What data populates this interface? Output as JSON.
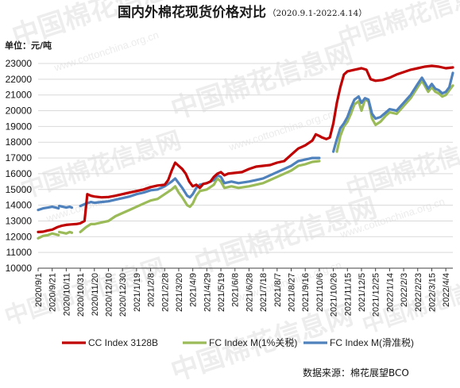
{
  "header": {
    "title": "国内外棉花现货价格对比",
    "date_range": "（2020.9.1-2022.4.14）",
    "unit": "单位：元/吨"
  },
  "footer": {
    "source": "数据来源：棉花展望BCO"
  },
  "watermark": {
    "text": "中国棉花信息网",
    "url": "www.cottonchina.org.cn"
  },
  "colors": {
    "cc_index": "#c00000",
    "fc_1pct": "#9bbb59",
    "fc_sliding": "#4f81bd",
    "grid": "#d9d9d9",
    "axis": "#404040"
  },
  "chart_data": {
    "type": "line",
    "title": "国内外棉花现货价格对比",
    "subtitle": "（2020.9.1-2022.4.14）",
    "ylabel": "单位：元/吨",
    "ylim": [
      10000,
      23000
    ],
    "yticks": [
      10000,
      11000,
      12000,
      13000,
      14000,
      15000,
      16000,
      17000,
      18000,
      19000,
      20000,
      21000,
      22000,
      23000
    ],
    "ytick_labels": [
      "10000",
      "11000",
      "12000",
      "13000",
      "14000",
      "15000",
      "16000",
      "17000",
      "18000",
      "19000",
      "20000",
      "21000",
      "22000",
      "23000"
    ],
    "x_dates": [
      "2020-09-01",
      "2022-04-14"
    ],
    "xtick_labels": [
      "2020/9/1",
      "2020/9/21",
      "2020/10/11",
      "2020/10/31",
      "2020/11/20",
      "2020/12/10",
      "2020/12/30",
      "2021/1/19",
      "2021/2/8",
      "2021/2/28",
      "2021/3/20",
      "2021/4/9",
      "2021/4/29",
      "2021/5/19",
      "2021/6/8",
      "2021/6/28",
      "2021/7/18",
      "2021/8/7",
      "2021/8/27",
      "2021/9/16",
      "2021/10/6",
      "2021/10/26",
      "2021/11/15",
      "2021/12/5",
      "2021/12/25",
      "2022/1/14",
      "2022/2/3",
      "2022/2/23",
      "2022/3/15",
      "2022/4/4"
    ],
    "grid": "horizontal",
    "legend_position": "bottom",
    "series": [
      {
        "name": "CC Index 3128B",
        "color_key": "cc_index",
        "points": [
          [
            "2020/9/1",
            12300
          ],
          [
            "2020/9/8",
            12320
          ],
          [
            "2020/9/15",
            12400
          ],
          [
            "2020/9/21",
            12450
          ],
          [
            "2020/9/28",
            12600
          ],
          [
            "2020/10/5",
            12700
          ],
          [
            "2020/10/11",
            12750
          ],
          [
            "2020/10/18",
            12780
          ],
          [
            "2020/10/25",
            12800
          ],
          [
            "2020/10/31",
            12850
          ],
          [
            "2020/11/6",
            13000
          ],
          [
            "2020/11/10",
            14700
          ],
          [
            "2020/11/15",
            14600
          ],
          [
            "2020/11/20",
            14550
          ],
          [
            "2020/11/30",
            14500
          ],
          [
            "2020/12/10",
            14520
          ],
          [
            "2020/12/20",
            14600
          ],
          [
            "2020/12/30",
            14700
          ],
          [
            "2021/1/9",
            14800
          ],
          [
            "2021/1/19",
            14900
          ],
          [
            "2021/1/29",
            15000
          ],
          [
            "2021/2/8",
            15150
          ],
          [
            "2021/2/18",
            15250
          ],
          [
            "2021/2/28",
            15300
          ],
          [
            "2021/3/5",
            15600
          ],
          [
            "2021/3/10",
            16200
          ],
          [
            "2021/3/15",
            16700
          ],
          [
            "2021/3/20",
            16500
          ],
          [
            "2021/3/25",
            16300
          ],
          [
            "2021/3/30",
            16000
          ],
          [
            "2021/4/4",
            15500
          ],
          [
            "2021/4/9",
            15200
          ],
          [
            "2021/4/14",
            15300
          ],
          [
            "2021/4/19",
            15100
          ],
          [
            "2021/4/24",
            15350
          ],
          [
            "2021/4/29",
            15400
          ],
          [
            "2021/5/4",
            15500
          ],
          [
            "2021/5/9",
            15800
          ],
          [
            "2021/5/14",
            16000
          ],
          [
            "2021/5/19",
            16100
          ],
          [
            "2021/5/24",
            15900
          ],
          [
            "2021/5/29",
            16000
          ],
          [
            "2021/6/8",
            16050
          ],
          [
            "2021/6/18",
            16100
          ],
          [
            "2021/6/28",
            16300
          ],
          [
            "2021/7/8",
            16450
          ],
          [
            "2021/7/18",
            16500
          ],
          [
            "2021/7/28",
            16550
          ],
          [
            "2021/8/7",
            16700
          ],
          [
            "2021/8/17",
            16800
          ],
          [
            "2021/8/27",
            17200
          ],
          [
            "2021/9/6",
            17600
          ],
          [
            "2021/9/16",
            17800
          ],
          [
            "2021/9/26",
            18100
          ],
          [
            "2021/10/1",
            18500
          ],
          [
            "2021/10/6",
            18400
          ],
          [
            "2021/10/10",
            18300
          ],
          [
            "2021/10/16",
            18200
          ],
          [
            "2021/10/21",
            18300
          ],
          [
            "2021/10/26",
            19200
          ],
          [
            "2021/10/31",
            20500
          ],
          [
            "2021/11/5",
            21500
          ],
          [
            "2021/11/10",
            22300
          ],
          [
            "2021/11/15",
            22500
          ],
          [
            "2021/11/25",
            22600
          ],
          [
            "2021/12/5",
            22700
          ],
          [
            "2021/12/12",
            22600
          ],
          [
            "2021/12/18",
            22000
          ],
          [
            "2021/12/25",
            21900
          ],
          [
            "2022/1/4",
            21950
          ],
          [
            "2022/1/14",
            22100
          ],
          [
            "2022/1/24",
            22300
          ],
          [
            "2022/2/3",
            22450
          ],
          [
            "2022/2/13",
            22600
          ],
          [
            "2022/2/23",
            22700
          ],
          [
            "2022/3/5",
            22800
          ],
          [
            "2022/3/15",
            22850
          ],
          [
            "2022/3/25",
            22800
          ],
          [
            "2022/4/4",
            22700
          ],
          [
            "2022/4/14",
            22750
          ]
        ]
      },
      {
        "name": "FC Index M(1%关税)",
        "color_key": "fc_1pct",
        "points": [
          [
            "2020/9/1",
            11900
          ],
          [
            "2020/9/8",
            12050
          ],
          [
            "2020/9/15",
            12100
          ],
          [
            "2020/9/21",
            12200
          ],
          [
            "2020/9/26",
            12150
          ],
          [
            "2020/9/30",
            12100
          ],
          null,
          [
            "2020/10/1",
            12300
          ],
          [
            "2020/10/6",
            12250
          ],
          [
            "2020/10/11",
            12200
          ],
          [
            "2020/10/16",
            12300
          ],
          [
            "2020/10/19",
            12250
          ],
          null,
          [
            "2020/10/31",
            12300
          ],
          [
            "2020/11/8",
            12600
          ],
          [
            "2020/11/15",
            12800
          ],
          [
            "2020/11/20",
            12800
          ],
          [
            "2020/11/30",
            12900
          ],
          [
            "2020/12/10",
            13000
          ],
          [
            "2020/12/20",
            13300
          ],
          [
            "2020/12/30",
            13500
          ],
          [
            "2021/1/9",
            13700
          ],
          [
            "2021/1/19",
            13900
          ],
          [
            "2021/1/29",
            14100
          ],
          [
            "2021/2/8",
            14300
          ],
          [
            "2021/2/18",
            14400
          ],
          [
            "2021/2/28",
            14700
          ],
          [
            "2021/3/10",
            15000
          ],
          [
            "2021/3/15",
            15200
          ],
          [
            "2021/3/20",
            14800
          ],
          [
            "2021/3/25",
            14500
          ],
          [
            "2021/4/1",
            14000
          ],
          [
            "2021/4/5",
            13900
          ],
          [
            "2021/4/9",
            14100
          ],
          [
            "2021/4/14",
            14600
          ],
          [
            "2021/4/19",
            14900
          ],
          [
            "2021/4/29",
            15000
          ],
          [
            "2021/5/9",
            15300
          ],
          [
            "2021/5/14",
            15700
          ],
          [
            "2021/5/19",
            15500
          ],
          [
            "2021/5/24",
            15100
          ],
          [
            "2021/6/3",
            15200
          ],
          [
            "2021/6/13",
            15100
          ],
          [
            "2021/6/28",
            15200
          ],
          [
            "2021/7/8",
            15300
          ],
          [
            "2021/7/18",
            15400
          ],
          [
            "2021/7/28",
            15600
          ],
          [
            "2021/8/7",
            15800
          ],
          [
            "2021/8/17",
            16000
          ],
          [
            "2021/8/27",
            16200
          ],
          [
            "2021/9/6",
            16500
          ],
          [
            "2021/9/16",
            16600
          ],
          [
            "2021/9/26",
            16750
          ],
          [
            "2021/10/6",
            16800
          ],
          null,
          [
            "2021/10/31",
            17400
          ],
          [
            "2021/11/5",
            18400
          ],
          [
            "2021/11/10",
            19000
          ],
          [
            "2021/11/15",
            19300
          ],
          [
            "2021/11/20",
            19800
          ],
          [
            "2021/11/25",
            20400
          ],
          [
            "2021/12/1",
            20600
          ],
          [
            "2021/12/5",
            20000
          ],
          [
            "2021/12/10",
            20700
          ],
          [
            "2021/12/15",
            20600
          ],
          [
            "2021/12/20",
            19500
          ],
          [
            "2021/12/25",
            19100
          ],
          [
            "2022/1/1",
            19300
          ],
          [
            "2022/1/9",
            19700
          ],
          [
            "2022/1/14",
            19900
          ],
          [
            "2022/1/24",
            19800
          ],
          [
            "2022/2/3",
            20300
          ],
          [
            "2022/2/13",
            20800
          ],
          [
            "2022/2/23",
            21500
          ],
          [
            "2022/3/1",
            21900
          ],
          [
            "2022/3/5",
            21600
          ],
          [
            "2022/3/10",
            21200
          ],
          [
            "2022/3/15",
            21500
          ],
          [
            "2022/3/20",
            21200
          ],
          [
            "2022/3/25",
            21100
          ],
          [
            "2022/3/30",
            20900
          ],
          [
            "2022/4/4",
            21000
          ],
          [
            "2022/4/9",
            21300
          ],
          [
            "2022/4/14",
            21600
          ]
        ]
      },
      {
        "name": "FC Index M(滑准税)",
        "color_key": "fc_sliding",
        "points": [
          [
            "2020/9/1",
            13700
          ],
          [
            "2020/9/8",
            13800
          ],
          [
            "2020/9/15",
            13850
          ],
          [
            "2020/9/21",
            13900
          ],
          [
            "2020/9/26",
            13850
          ],
          [
            "2020/9/30",
            13800
          ],
          null,
          [
            "2020/10/1",
            13950
          ],
          [
            "2020/10/6",
            13900
          ],
          [
            "2020/10/11",
            13850
          ],
          [
            "2020/10/16",
            13900
          ],
          [
            "2020/10/19",
            13850
          ],
          null,
          [
            "2020/10/31",
            13950
          ],
          [
            "2020/11/8",
            14100
          ],
          [
            "2020/11/15",
            14200
          ],
          [
            "2020/11/20",
            14150
          ],
          [
            "2020/11/30",
            14200
          ],
          [
            "2020/12/10",
            14250
          ],
          [
            "2020/12/20",
            14350
          ],
          [
            "2020/12/30",
            14450
          ],
          [
            "2021/1/9",
            14550
          ],
          [
            "2021/1/19",
            14700
          ],
          [
            "2021/1/29",
            14800
          ],
          [
            "2021/2/8",
            14950
          ],
          [
            "2021/2/18",
            15000
          ],
          [
            "2021/2/28",
            15200
          ],
          [
            "2021/3/10",
            15500
          ],
          [
            "2021/3/15",
            15700
          ],
          [
            "2021/3/20",
            15400
          ],
          [
            "2021/3/25",
            15100
          ],
          [
            "2021/4/1",
            14600
          ],
          [
            "2021/4/5",
            14500
          ],
          [
            "2021/4/9",
            14700
          ],
          [
            "2021/4/14",
            15100
          ],
          [
            "2021/4/19",
            15300
          ],
          [
            "2021/4/29",
            15400
          ],
          [
            "2021/5/9",
            15600
          ],
          [
            "2021/5/14",
            15900
          ],
          [
            "2021/5/19",
            15800
          ],
          [
            "2021/5/24",
            15400
          ],
          [
            "2021/6/3",
            15500
          ],
          [
            "2021/6/13",
            15400
          ],
          [
            "2021/6/28",
            15500
          ],
          [
            "2021/7/8",
            15600
          ],
          [
            "2021/7/18",
            15700
          ],
          [
            "2021/7/28",
            15900
          ],
          [
            "2021/8/7",
            16100
          ],
          [
            "2021/8/17",
            16300
          ],
          [
            "2021/8/27",
            16500
          ],
          [
            "2021/9/6",
            16800
          ],
          [
            "2021/9/16",
            16900
          ],
          [
            "2021/9/26",
            17000
          ],
          [
            "2021/10/6",
            17000
          ],
          null,
          [
            "2021/10/26",
            17400
          ],
          [
            "2021/10/31",
            18200
          ],
          [
            "2021/11/5",
            18900
          ],
          [
            "2021/11/10",
            19200
          ],
          [
            "2021/11/15",
            19600
          ],
          [
            "2021/11/20",
            20200
          ],
          [
            "2021/11/25",
            20700
          ],
          [
            "2021/12/1",
            20900
          ],
          [
            "2021/12/5",
            20500
          ],
          [
            "2021/12/10",
            20800
          ],
          [
            "2021/12/15",
            20700
          ],
          [
            "2021/12/20",
            19800
          ],
          [
            "2021/12/25",
            19500
          ],
          [
            "2022/1/1",
            19600
          ],
          [
            "2022/1/9",
            19900
          ],
          [
            "2022/1/14",
            20100
          ],
          [
            "2022/1/24",
            20000
          ],
          [
            "2022/2/3",
            20500
          ],
          [
            "2022/2/13",
            21000
          ],
          [
            "2022/2/23",
            21700
          ],
          [
            "2022/3/1",
            22100
          ],
          [
            "2022/3/5",
            21800
          ],
          [
            "2022/3/10",
            21400
          ],
          [
            "2022/3/15",
            21700
          ],
          [
            "2022/3/20",
            21400
          ],
          [
            "2022/3/25",
            21300
          ],
          [
            "2022/3/30",
            21100
          ],
          [
            "2022/4/4",
            21200
          ],
          [
            "2022/4/9",
            21500
          ],
          [
            "2022/4/14",
            22400
          ]
        ]
      }
    ]
  }
}
